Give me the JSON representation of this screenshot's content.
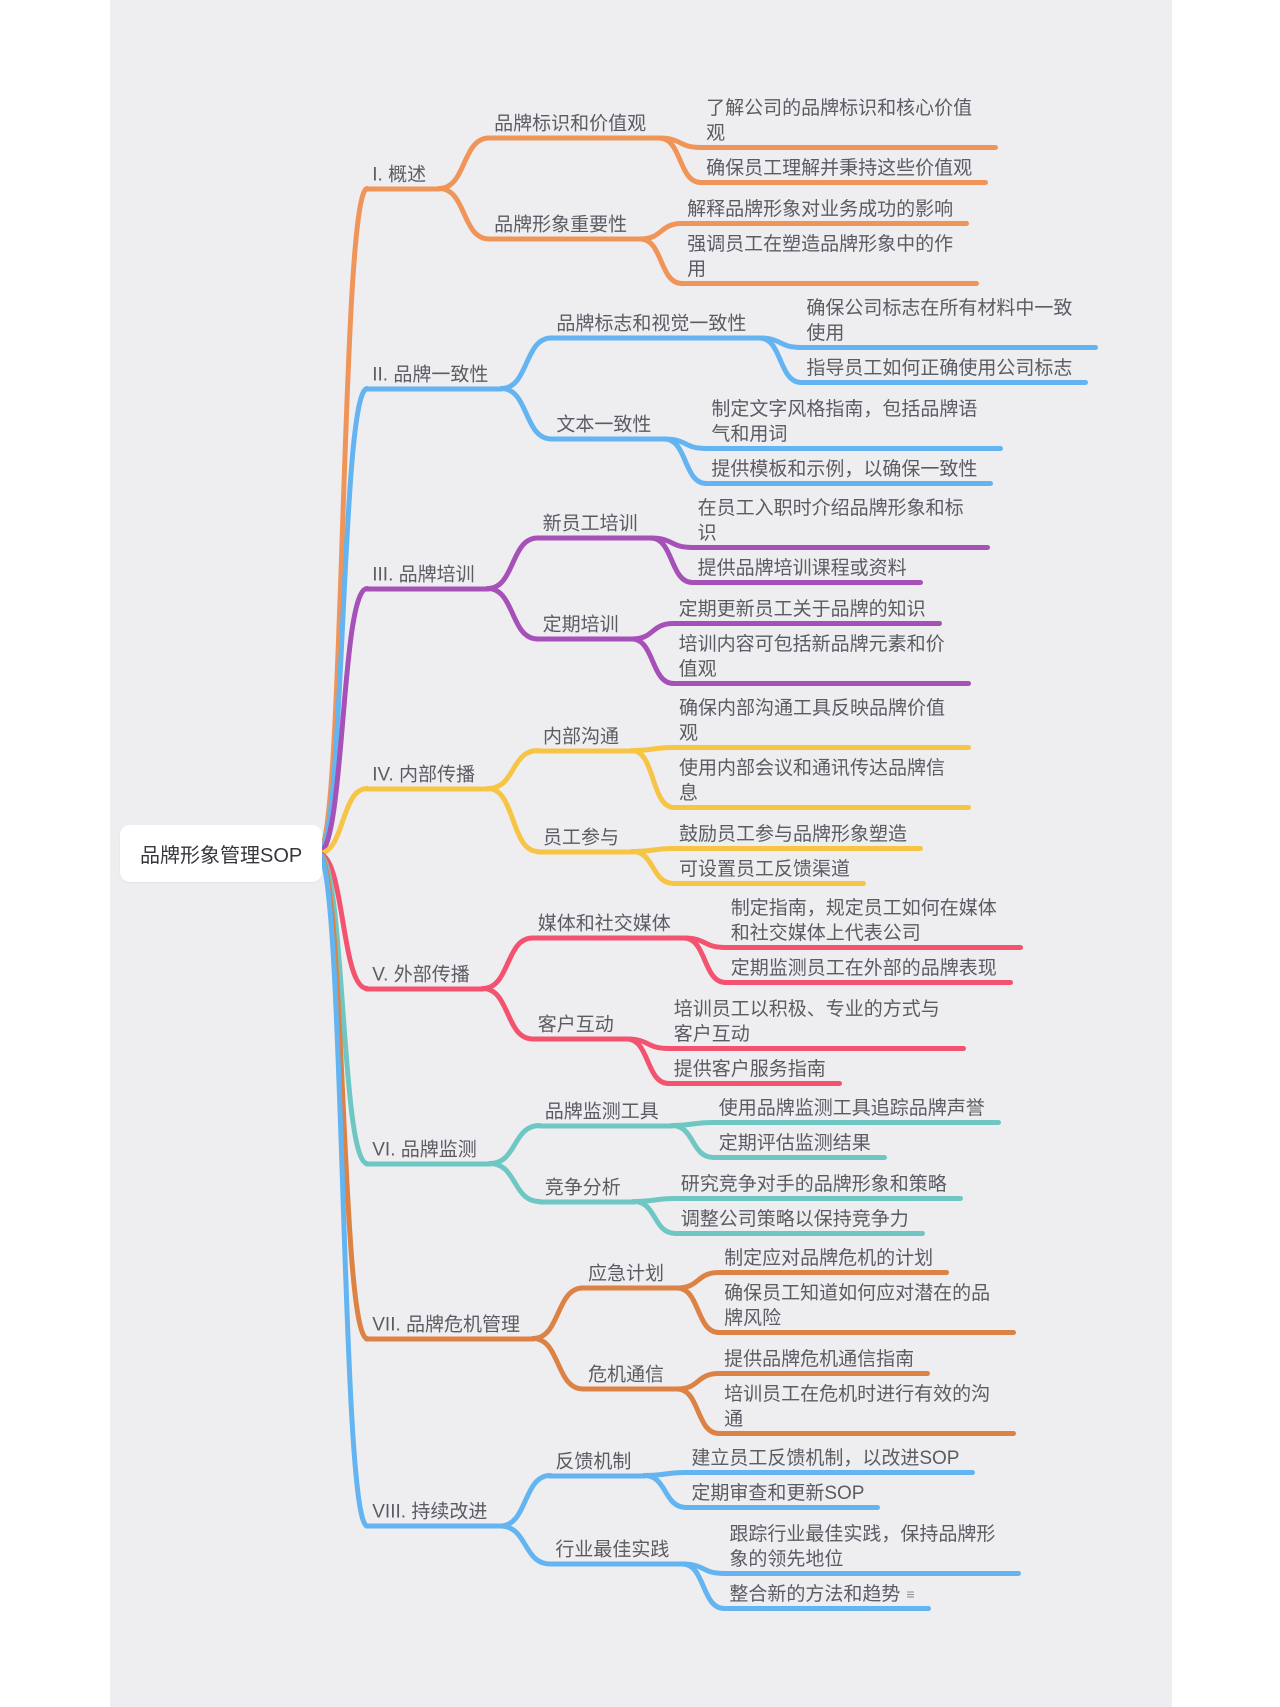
{
  "canvas": {
    "page_background": "#FFFFFF",
    "background": "#EEEEF1"
  },
  "root": {
    "label": "品牌形象管理SOP"
  },
  "branches": [
    {
      "label": "I. 概述",
      "color": "#F09559",
      "children": [
        {
          "label": "品牌标识和价值观",
          "leaves": [
            "了解公司的品牌标识和核心价值观",
            "确保员工理解并秉持这些价值观"
          ]
        },
        {
          "label": "品牌形象重要性",
          "leaves": [
            "解释品牌形象对业务成功的影响",
            "强调员工在塑造品牌形象中的作用"
          ]
        }
      ]
    },
    {
      "label": "II. 品牌一致性",
      "color": "#63B4F0",
      "children": [
        {
          "label": "品牌标志和视觉一致性",
          "leaves": [
            "确保公司标志在所有材料中一致使用",
            "指导员工如何正确使用公司标志"
          ]
        },
        {
          "label": "文本一致性",
          "leaves": [
            "制定文字风格指南，包括品牌语气和用词",
            "提供模板和示例，以确保一致性"
          ]
        }
      ]
    },
    {
      "label": "III. 品牌培训",
      "color": "#A551B8",
      "children": [
        {
          "label": "新员工培训",
          "leaves": [
            "在员工入职时介绍品牌形象和标识",
            "提供品牌培训课程或资料"
          ]
        },
        {
          "label": "定期培训",
          "leaves": [
            "定期更新员工关于品牌的知识",
            "培训内容可包括新品牌元素和价值观"
          ]
        }
      ]
    },
    {
      "label": "IV. 内部传播",
      "color": "#F6C545",
      "children": [
        {
          "label": "内部沟通",
          "leaves": [
            "确保内部沟通工具反映品牌价值观",
            "使用内部会议和通讯传达品牌信息"
          ]
        },
        {
          "label": "员工参与",
          "leaves": [
            "鼓励员工参与品牌形象塑造",
            "可设置员工反馈渠道"
          ]
        }
      ]
    },
    {
      "label": "V. 外部传播",
      "color": "#F3536F",
      "children": [
        {
          "label": "媒体和社交媒体",
          "leaves": [
            "制定指南，规定员工如何在媒体和社交媒体上代表公司",
            "定期监测员工在外部的品牌表现"
          ]
        },
        {
          "label": "客户互动",
          "leaves": [
            "培训员工以积极、专业的方式与客户互动",
            "提供客户服务指南"
          ]
        }
      ]
    },
    {
      "label": "VI. 品牌监测",
      "color": "#6FC7C3",
      "children": [
        {
          "label": "品牌监测工具",
          "leaves": [
            "使用品牌监测工具追踪品牌声誉",
            "定期评估监测结果"
          ]
        },
        {
          "label": "竞争分析",
          "leaves": [
            "研究竞争对手的品牌形象和策略",
            "调整公司策略以保持竞争力"
          ]
        }
      ]
    },
    {
      "label": "VII. 品牌危机管理",
      "color": "#DD8245",
      "children": [
        {
          "label": "应急计划",
          "leaves": [
            "制定应对品牌危机的计划",
            "确保员工知道如何应对潜在的品牌风险"
          ]
        },
        {
          "label": "危机通信",
          "leaves": [
            "提供品牌危机通信指南",
            "培训员工在危机时进行有效的沟通"
          ]
        }
      ]
    },
    {
      "label": "VIII. 持续改进",
      "color": "#63B4F0",
      "children": [
        {
          "label": "反馈机制",
          "leaves": [
            "建立员工反馈机制，以改进SOP",
            "定期审查和更新SOP"
          ]
        },
        {
          "label": "行业最佳实践",
          "leaves": [
            "跟踪行业最佳实践，保持品牌形象的领先地位",
            {
              "text": "整合新的方法和趋势",
              "icon": "note-icon"
            }
          ]
        }
      ]
    }
  ]
}
